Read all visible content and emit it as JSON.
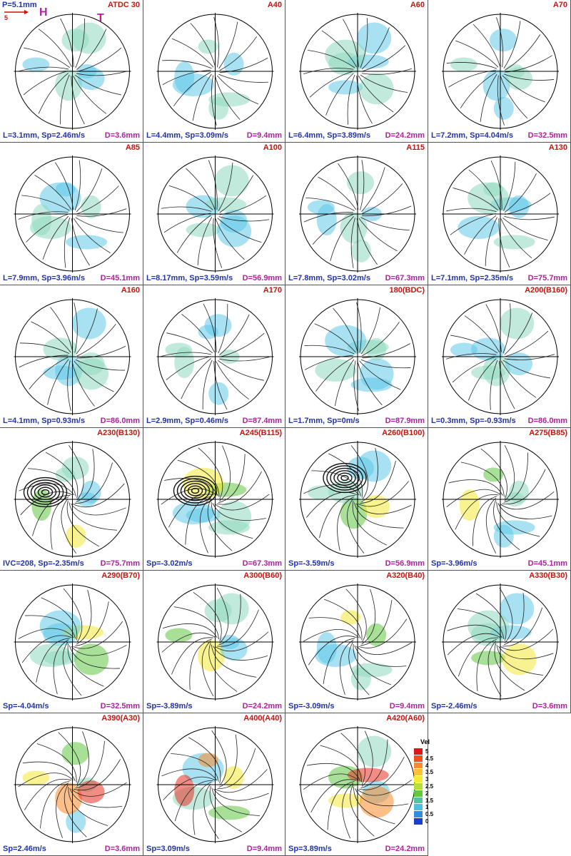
{
  "header": {
    "p_label": "P=5.1mm",
    "scale_label": "5",
    "h_label": "H",
    "t_label": "T"
  },
  "panels": [
    {
      "title": "ATDC 30",
      "left": "L=3.1mm, Sp=2.46m/s",
      "right": "D=3.6mm"
    },
    {
      "title": "A40",
      "left": "L=4.4mm, Sp=3.09m/s",
      "right": "D=9.4mm"
    },
    {
      "title": "A60",
      "left": "L=6.4mm, Sp=3.89m/s",
      "right": "D=24.2mm"
    },
    {
      "title": "A70",
      "left": "L=7.2mm, Sp=4.04m/s",
      "right": "D=32.5mm"
    },
    {
      "title": "A85",
      "left": "L=7.9mm, Sp=3.96m/s",
      "right": "D=45.1mm"
    },
    {
      "title": "A100",
      "left": "L=8.17mm, Sp=3.59m/s",
      "right": "D=56.9mm"
    },
    {
      "title": "A115",
      "left": "L=7.8mm, Sp=3.02m/s",
      "right": "D=67.3mm"
    },
    {
      "title": "A130",
      "left": "L=7.1mm, Sp=2.35m/s",
      "right": "D=75.7mm"
    },
    {
      "title": "A160",
      "left": "L=4.1mm, Sp=0.93m/s",
      "right": "D=86.0mm"
    },
    {
      "title": "A170",
      "left": "L=2.9mm, Sp=0.46m/s",
      "right": "D=87.4mm"
    },
    {
      "title": "180(BDC)",
      "left": "L=1.7mm, Sp=0m/s",
      "right": "D=87.9mm"
    },
    {
      "title": "A200(B160)",
      "left": "L=0.3mm, Sp=-0.93m/s",
      "right": "D=86.0mm"
    },
    {
      "title": "A230(B130)",
      "left": "IVC=208, Sp=-2.35m/s",
      "right": "D=75.7mm"
    },
    {
      "title": "A245(B115)",
      "left": "Sp=-3.02m/s",
      "right": "D=67.3mm"
    },
    {
      "title": "A260(B100)",
      "left": "Sp=-3.59m/s",
      "right": "D=56.9mm"
    },
    {
      "title": "A275(B85)",
      "left": "Sp=-3.96m/s",
      "right": "D=45.1mm"
    },
    {
      "title": "A290(B70)",
      "left": "Sp=-4.04m/s",
      "right": "D=32.5mm"
    },
    {
      "title": "A300(B60)",
      "left": "Sp=-3.89m/s",
      "right": "D=24.2mm"
    },
    {
      "title": "A320(B40)",
      "left": "Sp=-3.09m/s",
      "right": "D=9.4mm"
    },
    {
      "title": "A330(B30)",
      "left": "Sp=-2.46m/s",
      "right": "D=3.6mm"
    },
    {
      "title": "A390(A30)",
      "left": "Sp=2.46m/s",
      "right": "D=3.6mm"
    },
    {
      "title": "A400(A40)",
      "left": "Sp=3.09m/s",
      "right": "D=9.4mm"
    },
    {
      "title": "A420(A60)",
      "left": "Sp=3.89m/s",
      "right": "D=24.2mm"
    }
  ],
  "legend": {
    "title": "Vel",
    "ticks": [
      "5",
      "4.5",
      "4",
      "3.5",
      "3",
      "2.5",
      "2",
      "1.5",
      "1",
      "0.5",
      "0"
    ],
    "colors": [
      "#d7191c",
      "#f04f1d",
      "#fb8b2a",
      "#fdc030",
      "#f2ea34",
      "#b6de37",
      "#63c742",
      "#4fc4a0",
      "#4fbfe0",
      "#2f8ee0",
      "#1a3fc8"
    ]
  }
}
